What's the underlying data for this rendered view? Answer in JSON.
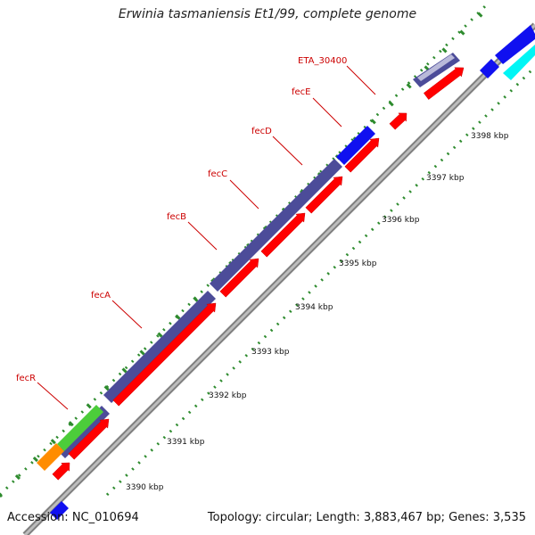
{
  "title": "Erwinia tasmaniensis Et1/99, complete genome",
  "footer": {
    "accession": "Accession: NC_010694",
    "summary": "Topology: circular; Length: 3,883,467 bp; Genes: 3,535"
  },
  "colors": {
    "backbone": "#8a8a8a",
    "cds": "#ff0000",
    "tick_major": "#2e8b2e",
    "operon": "#4b4b9a",
    "label": "#cc0000",
    "blue": "#1010f0",
    "cyan": "#00f5f5",
    "green": "#4ccd3a",
    "orange": "#ff8c00"
  },
  "scale": {
    "unit": "kbp",
    "ticks": [
      {
        "kbp": 3390,
        "label": "3390 kbp"
      },
      {
        "kbp": 3391,
        "label": "3391 kbp"
      },
      {
        "kbp": 3392,
        "label": "3392 kbp"
      },
      {
        "kbp": 3393,
        "label": "3393 kbp"
      },
      {
        "kbp": 3394,
        "label": "3394 kbp"
      },
      {
        "kbp": 3395,
        "label": "3395 kbp"
      },
      {
        "kbp": 3396,
        "label": "3396 kbp"
      },
      {
        "kbp": 3397,
        "label": "3397 kbp"
      },
      {
        "kbp": 3398,
        "label": "3398 kbp"
      }
    ]
  },
  "gene_labels": [
    {
      "name": "fecR"
    },
    {
      "name": "fecA"
    },
    {
      "name": "fecB"
    },
    {
      "name": "fecC"
    },
    {
      "name": "fecD"
    },
    {
      "name": "fecE"
    },
    {
      "name": "ETA_30400"
    }
  ]
}
